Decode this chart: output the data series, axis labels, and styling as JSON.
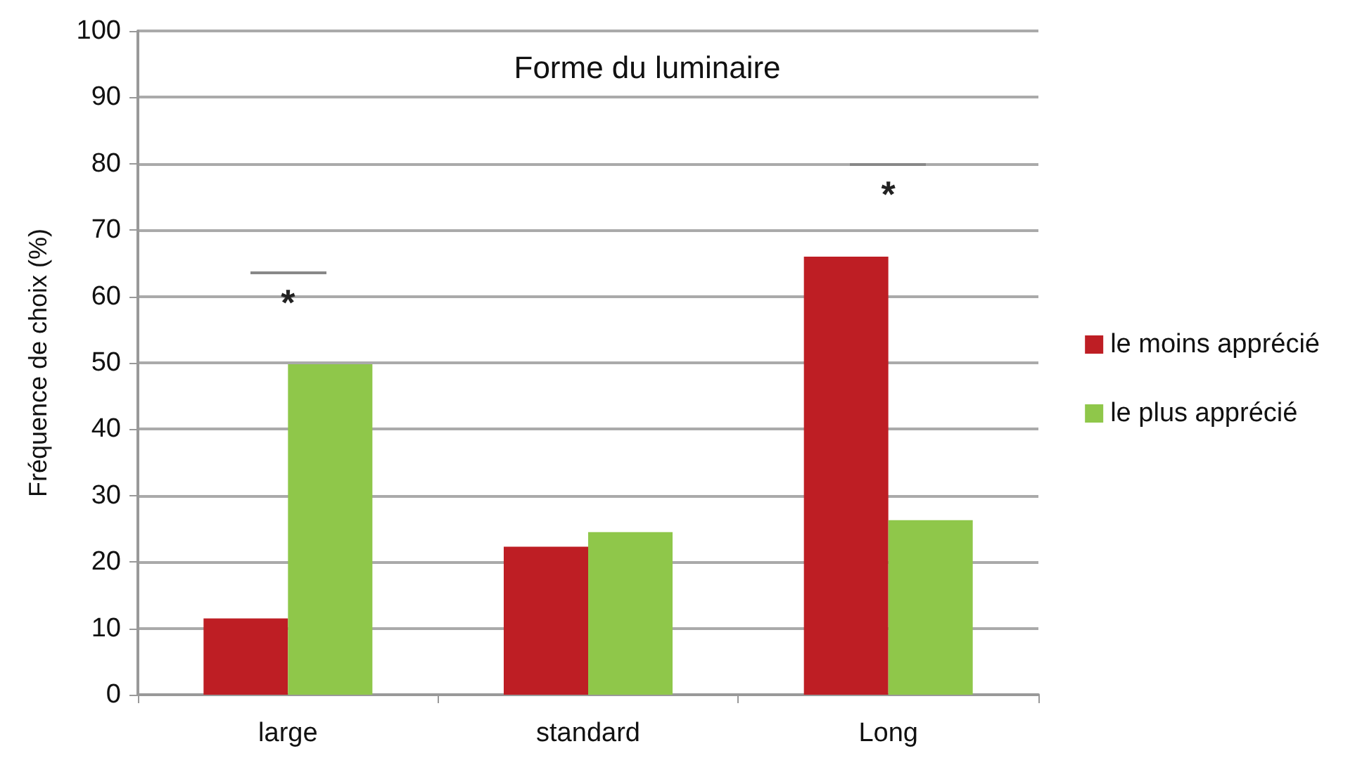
{
  "chart_data": {
    "type": "bar",
    "title": "Forme du luminaire",
    "ylabel": "Fréquence de choix (%)",
    "categories": [
      "large",
      "standard",
      "Long"
    ],
    "series": [
      {
        "name": "le moins apprécié",
        "color": "#be1e24",
        "values": [
          11.5,
          22.3,
          66
        ]
      },
      {
        "name": "le plus apprécié",
        "color": "#8fc74a",
        "values": [
          49.8,
          24.5,
          26.3
        ]
      }
    ],
    "ylim": [
      0,
      100
    ],
    "yticks": [
      0,
      10,
      20,
      30,
      40,
      50,
      60,
      70,
      80,
      90,
      100
    ],
    "grid": "y",
    "legend": "right",
    "annotations": [
      "*",
      "*"
    ]
  }
}
